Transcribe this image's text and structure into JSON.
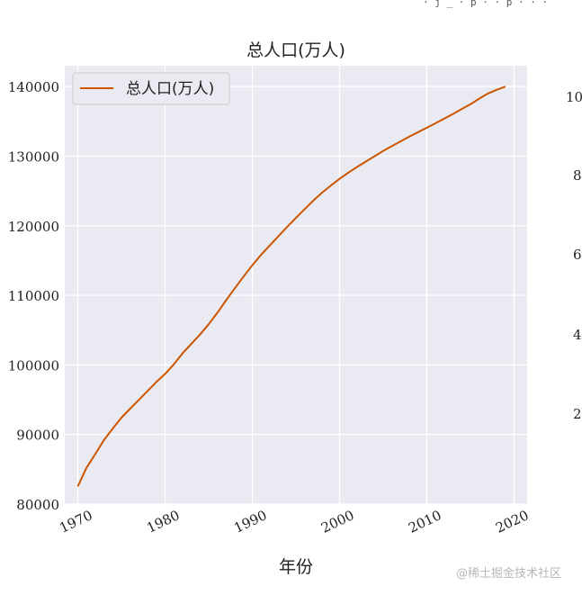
{
  "top_cropped_text": "· j _ · p · · p · · ·",
  "right_partial_ticks": [
    "10",
    "8",
    "6",
    "4",
    "2"
  ],
  "watermark": "@稀土掘金技术社区",
  "colors": {
    "plot_bg": "#eaeaf2",
    "grid": "#ffffff",
    "line": "#cc5500"
  },
  "chart_data": {
    "type": "line",
    "title": "总人口(万人)",
    "xlabel": "年份",
    "ylabel": "",
    "xlim": [
      1968.5,
      2021.5
    ],
    "ylim": [
      80000,
      143000
    ],
    "xticks": [
      1970,
      1980,
      1990,
      2000,
      2010,
      2020
    ],
    "yticks": [
      80000,
      90000,
      100000,
      110000,
      120000,
      130000,
      140000
    ],
    "grid": true,
    "legend": {
      "location": "top-left",
      "entries": [
        "总人口(万人)"
      ]
    },
    "series": [
      {
        "name": "总人口(万人)",
        "color": "#cc5500",
        "x": [
          1970,
          1971,
          1972,
          1973,
          1974,
          1975,
          1976,
          1977,
          1978,
          1979,
          1980,
          1981,
          1982,
          1983,
          1984,
          1985,
          1986,
          1987,
          1988,
          1989,
          1990,
          1991,
          1992,
          1993,
          1994,
          1995,
          1996,
          1997,
          1998,
          1999,
          2000,
          2001,
          2002,
          2003,
          2004,
          2005,
          2006,
          2007,
          2008,
          2009,
          2010,
          2011,
          2012,
          2013,
          2014,
          2015,
          2016,
          2017,
          2018,
          2019
        ],
        "values": [
          82542,
          85229,
          87177,
          89211,
          90859,
          92420,
          93717,
          94974,
          96259,
          97542,
          98705,
          100072,
          101654,
          103008,
          104357,
          105851,
          107507,
          109300,
          111026,
          112704,
          114333,
          115823,
          117171,
          118517,
          119850,
          121121,
          122389,
          123626,
          124761,
          125786,
          126743,
          127627,
          128453,
          129227,
          129988,
          130756,
          131448,
          132129,
          132802,
          133450,
          134091,
          134735,
          135404,
          136072,
          136782,
          137462,
          138271,
          139008,
          139538,
          140005
        ]
      }
    ]
  }
}
